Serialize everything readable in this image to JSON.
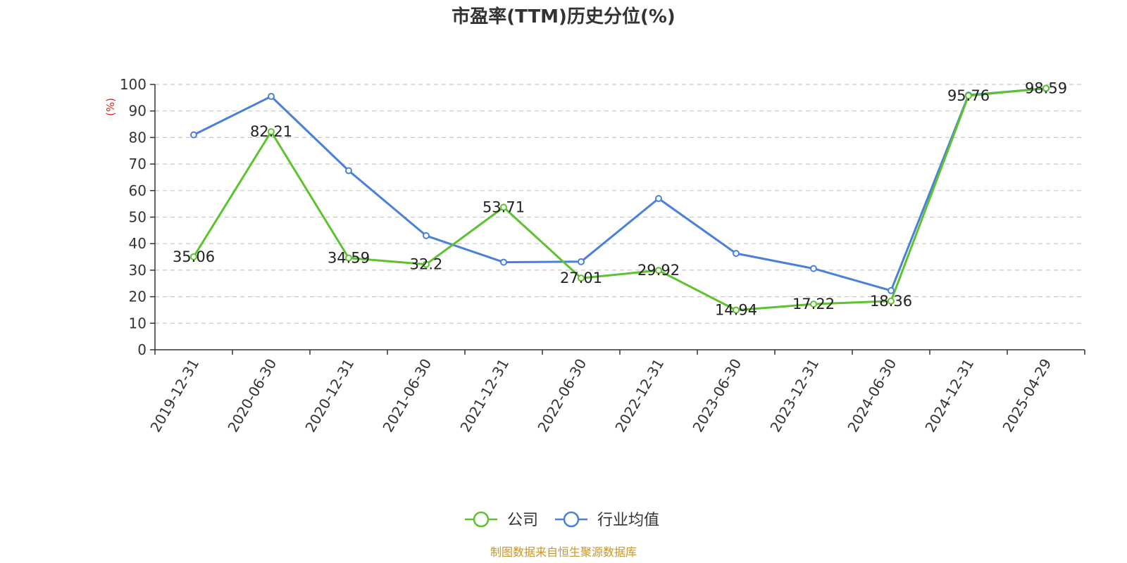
{
  "chart_data": {
    "type": "line",
    "title": "市盈率(TTM)历史分位(%)",
    "ylabel": "(%)",
    "xlabel": "",
    "ylim": [
      0,
      100
    ],
    "yticks": [
      0,
      10,
      20,
      30,
      40,
      50,
      60,
      70,
      80,
      90,
      100
    ],
    "grid": true,
    "legend_position": "bottom-center",
    "categories": [
      "2019-12-31",
      "2020-06-30",
      "2020-12-31",
      "2021-06-30",
      "2021-12-31",
      "2022-06-30",
      "2022-12-31",
      "2023-06-30",
      "2023-12-31",
      "2024-06-30",
      "2024-12-31",
      "2025-04-29"
    ],
    "series": [
      {
        "name": "公司",
        "color": "#5cc22e",
        "values": [
          35.06,
          82.21,
          34.59,
          32.2,
          53.71,
          27.01,
          29.92,
          14.94,
          17.22,
          18.36,
          95.76,
          98.59
        ],
        "data_labels": [
          "35.06",
          "82.21",
          "34.59",
          "32.2",
          "53.71",
          "27.01",
          "29.92",
          "14.94",
          "17.22",
          "18.36",
          "95.76",
          "98.59"
        ]
      },
      {
        "name": "行业均值",
        "color": "#4a7fdb",
        "values": [
          81,
          95.5,
          67.5,
          43,
          33,
          33.2,
          57,
          36.3,
          30.6,
          22.3,
          96,
          98.5
        ]
      }
    ],
    "source": "制图数据来自恒生聚源数据库"
  },
  "colors": {
    "source_text": "#c8962a",
    "unit_label": "#e02020",
    "grid": "#c8c8c8",
    "axis": "#333333"
  }
}
